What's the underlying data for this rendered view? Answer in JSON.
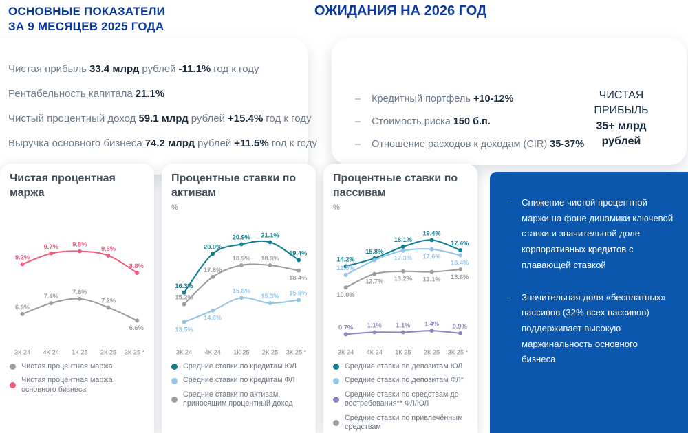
{
  "ui": {
    "dash": "–"
  },
  "colors": {
    "heading_blue": "#0a3aa0",
    "panel_blue": "#0a57ad",
    "teal": "#0f7e8f",
    "light_blue": "#93c6e4",
    "gray": "#9d9d9d",
    "pink": "#f05a7d",
    "purple": "#8e84bd",
    "dark_text": "#1c2b3a",
    "muted_text": "#6d7b89"
  },
  "top_left": {
    "title": [
      "ОСНОВНЫЕ ПОКАЗАТЕЛИ",
      "ЗА 9 МЕСЯЦЕВ 2025 ГОДА"
    ],
    "metrics": [
      {
        "label": "Чистая прибыль",
        "value": "33.4 млрд",
        "unit": "рублей",
        "delta": "-11.1%",
        "tail": "год к году"
      },
      {
        "label": "Рентабельность капитала",
        "value": "21.1%",
        "unit": "",
        "delta": "",
        "tail": ""
      },
      {
        "label": "Чистый процентный доход",
        "value": "59.1 млрд",
        "unit": "рублей",
        "delta": "+15.4%",
        "tail": "год к году"
      },
      {
        "label": "Выручка основного бизнеса",
        "value": "74.2 млрд",
        "unit": "рублей",
        "delta": "+11.5%",
        "tail": "год к году"
      }
    ]
  },
  "expectations": {
    "title": "ОЖИДАНИЯ НА 2026 ГОД",
    "items": [
      {
        "label": "Кредитный портфель",
        "value": "+10-12%"
      },
      {
        "label": "Стоимость риска",
        "value": "150 б.п."
      },
      {
        "label": "Отношение расходов к доходам (CIR)",
        "value": "35-37%"
      }
    ],
    "net_profit": {
      "line1": "ЧИСТАЯ",
      "line2": "ПРИБЫЛЬ",
      "line3": "35+ млрд",
      "line4": "рублей"
    }
  },
  "chart_data": [
    {
      "type": "line",
      "title": "Чистая процентная маржа",
      "unit": "",
      "categories": [
        "3К 24",
        "4К 24",
        "1К 25",
        "2К 25",
        "3К 25 *"
      ],
      "ylim": [
        5.8,
        10.8
      ],
      "grid": false,
      "legend_position": "bottom",
      "series": [
        {
          "name": "Чистая процентная маржа",
          "color": "#9d9d9d",
          "values": [
            6.9,
            7.4,
            7.6,
            7.2,
            6.6
          ],
          "labels": [
            "6.9%",
            "7.4%",
            "7.6%",
            "7.2%",
            "6.6%"
          ],
          "label_sides": [
            "a",
            "a",
            "a",
            "a",
            "b"
          ]
        },
        {
          "name": "Чистая процентная маржа основного бизнеса",
          "color": "#f05a7d",
          "values": [
            9.2,
            9.7,
            9.8,
            9.6,
            8.8
          ],
          "labels": [
            "9.2%",
            "9.7%",
            "9.8%",
            "9.6%",
            "8.8%"
          ],
          "label_sides": [
            "a",
            "a",
            "a",
            "a",
            "a"
          ]
        }
      ]
    },
    {
      "type": "line",
      "title": "Процентные ставки по активам",
      "unit": "%",
      "categories": [
        "3К 24",
        "4К 24",
        "1К 25",
        "2К 25",
        "3К 25 *"
      ],
      "ylim": [
        12.0,
        22.3
      ],
      "grid": false,
      "legend_position": "bottom",
      "series": [
        {
          "name": "Средние ставки по кредитам ЮЛ",
          "color": "#0f7e8f",
          "values": [
            16.3,
            20.0,
            20.9,
            21.1,
            19.4
          ],
          "labels": [
            "16.3%",
            "20.0%",
            "20.9%",
            "21.1%",
            "19.4%"
          ],
          "label_sides": [
            "a",
            "a",
            "a",
            "a",
            "a"
          ]
        },
        {
          "name": "Средние ставки по кредитам ФЛ",
          "color": "#93c6e4",
          "values": [
            13.5,
            14.6,
            15.8,
            15.3,
            15.6
          ],
          "labels": [
            "13.5%",
            "14.6%",
            "15.8%",
            "15.3%",
            "15.6%"
          ],
          "label_sides": [
            "b",
            "b",
            "a",
            "a",
            "a"
          ]
        },
        {
          "name": "Средние ставки по активам, приносящим процентный доход",
          "color": "#9d9d9d",
          "values": [
            15.2,
            17.8,
            18.9,
            18.9,
            18.4
          ],
          "labels": [
            "15.2%",
            "17.8%",
            "18.9%",
            "18.9%",
            "18.4%"
          ],
          "label_sides": [
            "a",
            "a",
            "a",
            "a",
            "b"
          ]
        }
      ]
    },
    {
      "type": "line",
      "title": "Процентные ставки по пассивам",
      "unit": "%",
      "categories": [
        "3К 24",
        "4К 24",
        "1К 25",
        "2К 25",
        "3К 25 *"
      ],
      "ylim": [
        0,
        21.5
      ],
      "grid": false,
      "legend_position": "bottom",
      "series": [
        {
          "name": "Средние ставки по депозитам ЮЛ",
          "color": "#0f7e8f",
          "values": [
            14.2,
            15.8,
            18.1,
            19.4,
            17.4
          ],
          "labels": [
            "14.2%",
            "15.8%",
            "18.1%",
            "19.4%",
            "17.4%"
          ],
          "label_sides": [
            "a",
            "a",
            "a",
            "a",
            "a"
          ]
        },
        {
          "name": "Средние ставки по депозитам ФЛ*",
          "color": "#93c6e4",
          "values": [
            12.5,
            15.4,
            17.3,
            17.6,
            16.4
          ],
          "labels": [
            "12.5%",
            "",
            "17.3%",
            "17.6%",
            "16.4%"
          ],
          "label_sides": [
            "a",
            "a",
            "b",
            "b",
            "b"
          ]
        },
        {
          "name": "Средние ставки по средствам до востребования** ФЛ/ЮЛ",
          "color": "#8e84bd",
          "values": [
            0.7,
            1.1,
            1.1,
            1.4,
            0.9
          ],
          "labels": [
            "0.7%",
            "1.1%",
            "1.1%",
            "1.4%",
            "0.9%"
          ],
          "label_sides": [
            "a",
            "a",
            "a",
            "a",
            "a"
          ]
        },
        {
          "name": "Средние ставки по привлечённым средствам",
          "color": "#9d9d9d",
          "values": [
            10.0,
            12.7,
            13.2,
            13.1,
            13.6
          ],
          "labels": [
            "10.0%",
            "12.7%",
            "13.2%",
            "13.1%",
            "13.6%"
          ],
          "label_sides": [
            "b",
            "b",
            "b",
            "b",
            "b"
          ]
        }
      ]
    }
  ],
  "insights": {
    "bullets": [
      "Снижение чистой процентной маржи на фоне динамики ключевой ставки и значительной доле корпоративных кредитов с плавающей ставкой",
      "Значительная доля «бесплатных» пассивов (32% всех пассивов) поддерживает высокую маржинальность основного бизнеса"
    ]
  }
}
